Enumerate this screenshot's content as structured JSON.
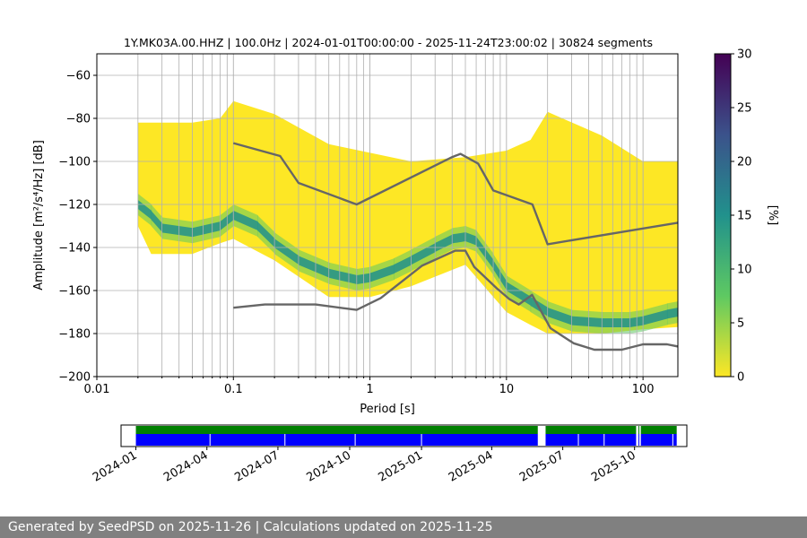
{
  "chart_data": [
    {
      "type": "heatmap",
      "subtype": "probabilistic-power-spectral-density",
      "title": "1Y.MK03A.00.HHZ | 100.0Hz | 2024-01-01T00:00:00 - 2025-11-24T23:00:02 | 30824 segments",
      "xlabel": "Period [s]",
      "ylabel": "Amplitude [m²/s⁴/Hz] [dB]",
      "x_scale": "log",
      "xlim": [
        0.01,
        180
      ],
      "ylim": [
        -200,
        -50
      ],
      "xticks": [
        "0.01",
        "0.1",
        "1",
        "10",
        "100"
      ],
      "yticks": [
        "−60",
        "−80",
        "−100",
        "−120",
        "−140",
        "−160",
        "−180",
        "−200"
      ],
      "grid": true,
      "colorbar": {
        "label": "[%]",
        "range": [
          0,
          30
        ],
        "ticks": [
          "0",
          "5",
          "10",
          "15",
          "20",
          "25",
          "30"
        ],
        "colormap": "viridis",
        "colors": [
          "#fde725",
          "#5ec962",
          "#21918c",
          "#3b528b",
          "#440154"
        ]
      },
      "mode_curve": {
        "x": [
          0.02,
          0.025,
          0.03,
          0.05,
          0.08,
          0.1,
          0.15,
          0.2,
          0.3,
          0.5,
          0.8,
          1,
          1.5,
          2,
          3,
          4,
          5,
          6,
          8,
          10,
          15,
          20,
          30,
          50,
          80,
          100,
          150,
          180
        ],
        "y": [
          -120,
          -125,
          -131,
          -133,
          -130,
          -125,
          -130,
          -138,
          -146,
          -152,
          -155,
          -154,
          -150,
          -146,
          -140,
          -136,
          -135,
          -137,
          -148,
          -158,
          -165,
          -170,
          -174,
          -175,
          -175,
          -174,
          -171,
          -170
        ]
      },
      "envelope": {
        "x": [
          0.02,
          0.025,
          0.05,
          0.08,
          0.1,
          0.2,
          0.5,
          1,
          2,
          5,
          10,
          15,
          20,
          50,
          100,
          180
        ],
        "upper": [
          -82,
          -82,
          -82,
          -80,
          -72,
          -78,
          -92,
          -96,
          -100,
          -98,
          -95,
          -90,
          -77,
          -88,
          -100,
          -100
        ],
        "lower": [
          -130,
          -143,
          -143,
          -138,
          -136,
          -146,
          -163,
          -163,
          -158,
          -148,
          -170,
          -176,
          -180,
          -180,
          -178,
          -177
        ]
      },
      "series": [
        {
          "name": "",
          "color": "#666666",
          "x": [
            0.1,
            0.22,
            0.3,
            0.8,
            4,
            4.6,
            6.2,
            8,
            15.5,
            20,
            180
          ],
          "y": [
            -91.5,
            -97.5,
            -110,
            -120,
            -98,
            -96.5,
            -101,
            -113.5,
            -120,
            -138.5,
            -128.5
          ]
        },
        {
          "name": "",
          "color": "#666666",
          "x": [
            0.1,
            0.17,
            0.4,
            0.8,
            1.2,
            2.4,
            4.2,
            5.0,
            5.8,
            8.5,
            10.5,
            12.3,
            15.4,
            21,
            31,
            44,
            70,
            100,
            150,
            180
          ],
          "y": [
            -168,
            -166.5,
            -166.5,
            -169,
            -163.5,
            -148.5,
            -141.5,
            -141.5,
            -149,
            -159,
            -164,
            -166.5,
            -162,
            -177.5,
            -184.5,
            -187.5,
            -187.5,
            -185,
            -185,
            -186
          ]
        }
      ]
    },
    {
      "type": "bar",
      "subtype": "data-availability-timeline",
      "xticks": [
        "2024-01",
        "2024-04",
        "2024-07",
        "2024-10",
        "2025-01",
        "2025-04",
        "2025-07",
        "2025-10"
      ],
      "range": [
        "2023-12-13",
        "2025-12-07"
      ],
      "colors": {
        "coverage": "#0000ff",
        "processed": "#008000"
      },
      "coverage_intervals": [
        [
          "2024-01-01",
          "2025-05-30"
        ],
        [
          "2025-06-09",
          "2025-10-03"
        ],
        [
          "2025-10-06",
          "2025-10-07"
        ],
        [
          "2025-10-09",
          "2025-11-24"
        ]
      ],
      "gaps": [
        "2024-04-05",
        "2024-07-10",
        "2024-10-08",
        "2025-01-01",
        "2025-07-21",
        "2025-08-23",
        "2025-11-19"
      ]
    }
  ],
  "footer": {
    "text": "Generated by SeedPSD on 2025-11-26 | Calculations updated on 2025-11-25"
  }
}
